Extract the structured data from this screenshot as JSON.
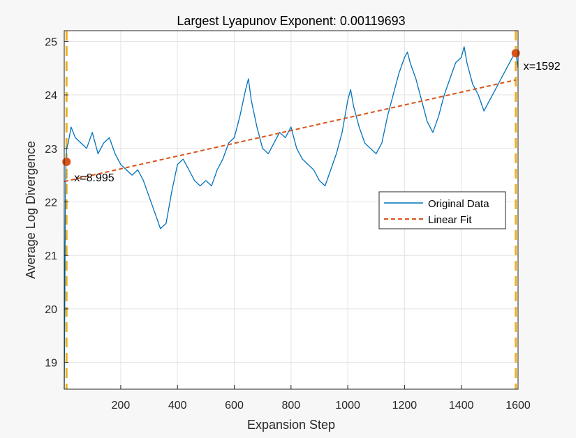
{
  "chart_data": {
    "type": "line",
    "title": "Largest Lyapunov Exponent: 0.00119693",
    "xlabel": "Expansion Step",
    "ylabel": "Average Log Divergence",
    "xlim": [
      1,
      1600
    ],
    "ylim": [
      18.5,
      25.2
    ],
    "xticks": [
      200,
      400,
      600,
      800,
      1000,
      1200,
      1400,
      1600
    ],
    "yticks": [
      19,
      20,
      21,
      22,
      23,
      24,
      25
    ],
    "grid": true,
    "legend_position": "right-middle",
    "series": [
      {
        "name": "Original Data",
        "color": "#0072BD",
        "style": "solid",
        "x": [
          1,
          3,
          5,
          7,
          9,
          15,
          25,
          40,
          60,
          80,
          100,
          120,
          140,
          160,
          180,
          200,
          220,
          240,
          260,
          280,
          300,
          320,
          340,
          360,
          380,
          400,
          420,
          440,
          460,
          480,
          500,
          520,
          540,
          560,
          580,
          600,
          620,
          640,
          650,
          660,
          680,
          700,
          720,
          740,
          760,
          780,
          800,
          820,
          840,
          860,
          880,
          900,
          920,
          940,
          960,
          980,
          1000,
          1010,
          1020,
          1040,
          1060,
          1080,
          1100,
          1120,
          1140,
          1160,
          1180,
          1200,
          1210,
          1220,
          1240,
          1260,
          1280,
          1300,
          1320,
          1340,
          1360,
          1380,
          1400,
          1410,
          1420,
          1440,
          1460,
          1480,
          1500,
          1520,
          1540,
          1560,
          1580,
          1592,
          1600
        ],
        "y": [
          18.5,
          20.0,
          21.9,
          22.7,
          23.0,
          23.1,
          23.4,
          23.2,
          23.1,
          23.0,
          23.3,
          22.9,
          23.1,
          23.2,
          22.9,
          22.7,
          22.6,
          22.5,
          22.6,
          22.4,
          22.1,
          21.8,
          21.5,
          21.6,
          22.2,
          22.7,
          22.8,
          22.6,
          22.4,
          22.3,
          22.4,
          22.3,
          22.6,
          22.8,
          23.1,
          23.2,
          23.6,
          24.1,
          24.3,
          23.9,
          23.4,
          23.0,
          22.9,
          23.1,
          23.3,
          23.2,
          23.4,
          23.0,
          22.8,
          22.7,
          22.6,
          22.4,
          22.3,
          22.6,
          22.9,
          23.3,
          23.9,
          24.1,
          23.8,
          23.4,
          23.1,
          23.0,
          22.9,
          23.1,
          23.6,
          24.0,
          24.4,
          24.7,
          24.8,
          24.6,
          24.3,
          23.9,
          23.5,
          23.3,
          23.6,
          24.0,
          24.3,
          24.6,
          24.7,
          24.9,
          24.6,
          24.2,
          24.0,
          23.7,
          23.9,
          24.1,
          24.3,
          24.5,
          24.7,
          24.8,
          24.5
        ]
      },
      {
        "name": "Linear Fit",
        "color": "#D95319",
        "style": "dashed",
        "x": [
          1,
          1592
        ],
        "y": [
          22.38,
          24.28
        ]
      }
    ],
    "markers": [
      {
        "x": 8.995,
        "y": 22.75,
        "label": "x=8.995",
        "color": "#D95319"
      },
      {
        "x": 1592,
        "y": 24.78,
        "label": "x=1592",
        "color": "#D95319"
      }
    ],
    "vlines": [
      {
        "x": 8.995,
        "color": "#EDB120",
        "style": "dashed"
      },
      {
        "x": 1592,
        "color": "#EDB120",
        "style": "dashed"
      }
    ]
  }
}
